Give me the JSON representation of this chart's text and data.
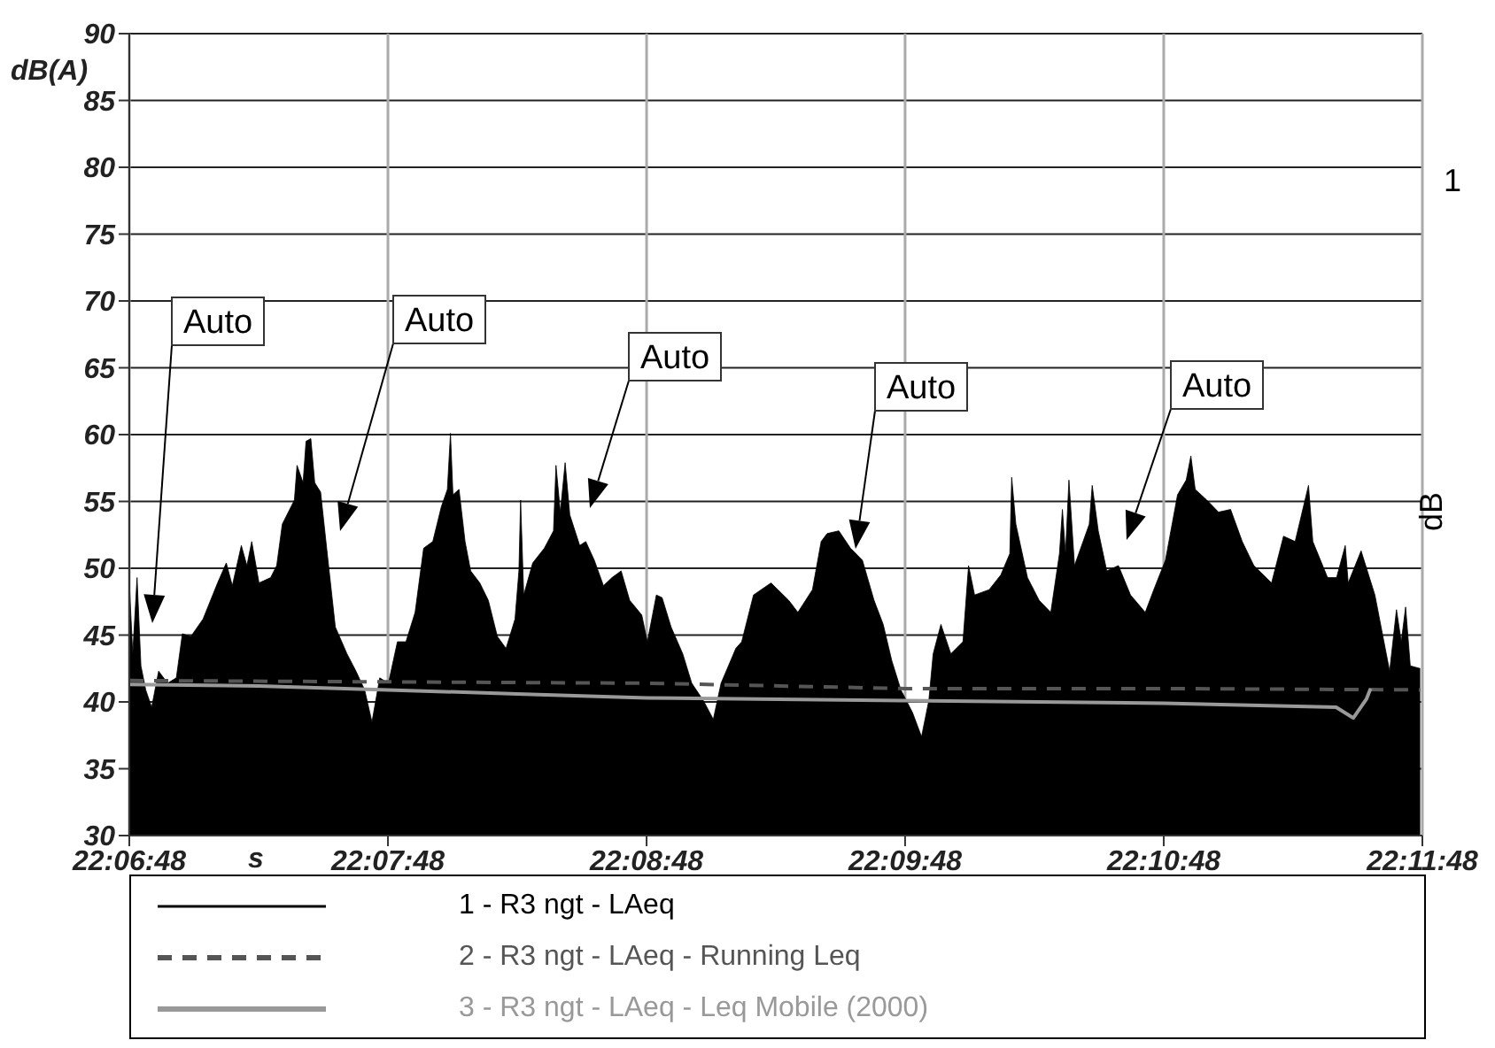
{
  "chart_data": {
    "type": "line",
    "ylabel": "dB(A)",
    "xlabel": "s",
    "xlim": [
      22.11333,
      22.19667
    ],
    "xticks": [
      {
        "value": 22.11333,
        "label": "22:06:48"
      },
      {
        "value": 22.13,
        "label": "22:07:48"
      },
      {
        "value": 22.14667,
        "label": "22:08:48"
      },
      {
        "value": 22.16333,
        "label": "22:09:48"
      },
      {
        "value": 22.18,
        "label": "22:10:48"
      },
      {
        "value": 22.19667,
        "label": "22:11:48"
      }
    ],
    "ylim": [
      30,
      90
    ],
    "yticks": [
      30,
      35,
      40,
      45,
      50,
      55,
      60,
      65,
      70,
      75,
      80,
      85,
      90
    ],
    "grid": true,
    "legend": "bottom",
    "series": [
      {
        "name": "1 - R3 ngt - LAeq",
        "type": "area",
        "color": "#000000",
        "x": [
          22.11333,
          22.11355,
          22.11383,
          22.11408,
          22.11439,
          22.11477,
          22.11522,
          22.1158,
          22.11636,
          22.11675,
          22.1173,
          22.11808,
          22.11902,
          22.11958,
          22.11997,
          22.12055,
          22.12091,
          22.12122,
          22.12169,
          22.12244,
          22.12283,
          22.12319,
          22.12397,
          22.12414,
          22.12453,
          22.12472,
          22.12503,
          22.12528,
          22.12566,
          22.12605,
          22.12661,
          22.12736,
          22.12794,
          22.1285,
          22.12897,
          22.12947,
          22.13003,
          22.13061,
          22.13116,
          22.13175,
          22.1323,
          22.13289,
          22.13344,
          22.13383,
          22.13403,
          22.13419,
          22.13458,
          22.13497,
          22.13533,
          22.13592,
          22.13647,
          22.13705,
          22.13761,
          22.13819,
          22.13844,
          22.13855,
          22.13875,
          22.13933,
          22.14008,
          22.14067,
          22.14083,
          22.14111,
          22.14142,
          22.14172,
          22.14236,
          22.14275,
          22.1433,
          22.14389,
          22.14444,
          22.14503,
          22.14558,
          22.14636,
          22.14672,
          22.1473,
          22.14767,
          22.14825,
          22.149,
          22.14958,
          22.15033,
          22.15097,
          22.15147,
          22.15242,
          22.1528,
          22.15356,
          22.15469,
          22.15583,
          22.15642,
          22.15736,
          22.15792,
          22.15831,
          22.15906,
          22.15981,
          22.16058,
          22.16133,
          22.16192,
          22.16247,
          22.16306,
          22.16381,
          22.16439,
          22.16486,
          22.16514,
          22.16564,
          22.16628,
          22.16706,
          22.16742,
          22.16781,
          22.16875,
          22.1695,
          22.17008,
          22.1702,
          22.17047,
          22.17122,
          22.17197,
          22.17272,
          22.17328,
          22.17347,
          22.17367,
          22.17389,
          22.17425,
          22.1752,
          22.17539,
          22.17578,
          22.17633,
          22.17708,
          22.17786,
          22.17881,
          22.17936,
          22.18011,
          22.18089,
          22.18145,
          22.18175,
          22.18203,
          22.18278,
          22.18353,
          22.18431,
          22.18506,
          22.18581,
          22.18695,
          22.18772,
          22.18847,
          22.18933,
          22.18961,
          22.19056,
          22.19114,
          22.1917,
          22.19189,
          22.19272,
          22.19361,
          22.19456,
          22.195,
          22.19531,
          22.19559,
          22.19589,
          22.19653
        ],
        "values": [
          48.9,
          43.6,
          49.3,
          42.7,
          40.9,
          39.6,
          42.3,
          41.4,
          41.8,
          45.1,
          44.9,
          46.2,
          48.9,
          50.4,
          48.7,
          51.7,
          50.2,
          52.0,
          48.9,
          49.3,
          50.2,
          53.3,
          55.1,
          57.7,
          56.4,
          59.5,
          59.7,
          56.4,
          55.7,
          51.5,
          45.6,
          43.6,
          42.3,
          40.9,
          38.5,
          41.8,
          41.4,
          44.5,
          44.5,
          46.7,
          51.5,
          52.0,
          54.6,
          55.9,
          60.1,
          55.5,
          55.9,
          52.0,
          49.8,
          48.9,
          47.6,
          44.9,
          44.0,
          46.2,
          49.8,
          55.1,
          48.0,
          50.4,
          51.5,
          52.8,
          57.7,
          54.2,
          57.9,
          54.0,
          51.7,
          52.0,
          50.6,
          48.7,
          49.3,
          49.8,
          47.6,
          46.5,
          44.5,
          48.0,
          47.8,
          45.6,
          43.6,
          41.4,
          40.1,
          38.7,
          41.4,
          44.0,
          44.5,
          48.0,
          48.9,
          47.6,
          46.7,
          48.4,
          52.0,
          52.6,
          52.8,
          51.5,
          50.6,
          47.6,
          45.8,
          43.1,
          40.9,
          39.2,
          37.4,
          40.1,
          43.6,
          45.8,
          43.6,
          44.5,
          50.2,
          48.0,
          48.4,
          49.5,
          51.1,
          56.8,
          53.3,
          49.3,
          47.6,
          46.7,
          51.1,
          54.4,
          51.1,
          56.6,
          50.2,
          53.3,
          56.2,
          52.8,
          49.8,
          50.2,
          48.0,
          46.7,
          48.4,
          50.6,
          55.5,
          56.6,
          58.4,
          55.9,
          55.1,
          54.2,
          54.4,
          52.0,
          50.2,
          48.9,
          52.4,
          52.0,
          56.2,
          52.0,
          49.3,
          49.3,
          51.7,
          48.9,
          51.3,
          48.0,
          42.3,
          46.9,
          44.5,
          47.1,
          42.7,
          42.5
        ]
      },
      {
        "name": "2 - R3 ngt - LAeq - Running Leq",
        "type": "line",
        "line_style": "dashed",
        "color": "#555555",
        "x": [
          22.11333,
          22.13,
          22.14667,
          22.16333,
          22.18,
          22.19653
        ],
        "values": [
          41.6,
          41.5,
          41.4,
          41.0,
          41.0,
          40.9
        ]
      },
      {
        "name": "3 - R3 ngt - LAeq - Leq Mobile (2000)",
        "type": "line",
        "color": "#999999",
        "x": [
          22.11333,
          22.12167,
          22.13,
          22.13833,
          22.14667,
          22.16333,
          22.18,
          22.19111,
          22.19222,
          22.19306,
          22.19333
        ],
        "values": [
          41.3,
          41.2,
          40.9,
          40.6,
          40.3,
          40.1,
          39.9,
          39.6,
          38.8,
          40.2,
          41.0
        ]
      }
    ],
    "annotations": [
      "Auto",
      "Auto",
      "Auto",
      "Auto",
      "Auto",
      "1",
      "dB"
    ]
  }
}
